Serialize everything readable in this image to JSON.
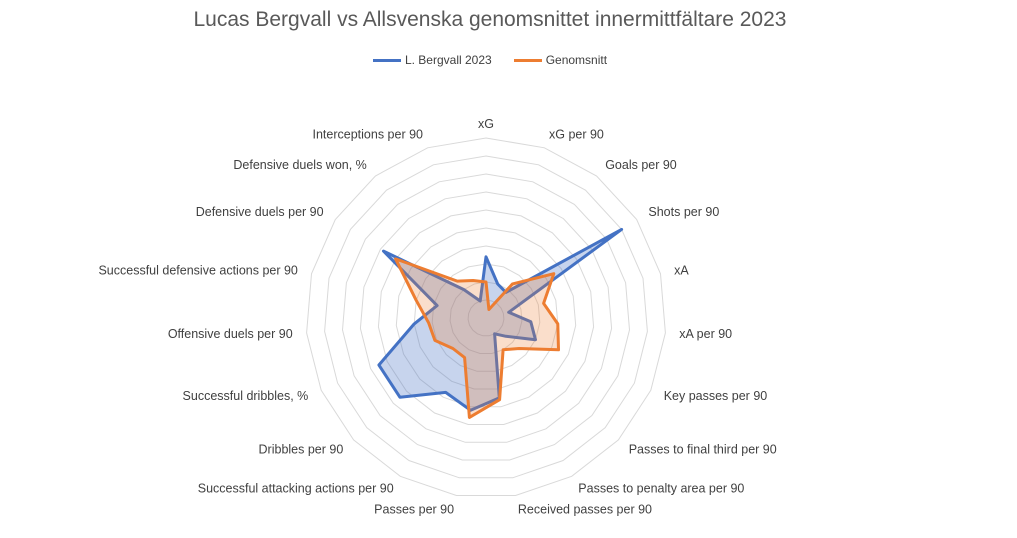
{
  "chart_data": {
    "type": "radar",
    "title": "Lucas Bergvall vs Allsvenska genomsnittet innermittfältare 2023",
    "categories": [
      "xG",
      "xG per 90",
      "Goals per 90",
      "Shots per 90",
      "xA",
      "xA per 90",
      "Key passes per 90",
      "Passes to final third per 90",
      "Passes to penalty area per 90",
      "Received passes per 90",
      "Passes per 90",
      "Successful attacking actions per 90",
      "Dribbles per 90",
      "Successful dribbles, %",
      "Offensive duels per 90",
      "Successful defensive actions per 90",
      "Defensive duels per 90",
      "Defensive duels won, %",
      "Interceptions per 90"
    ],
    "rmax": 10,
    "rings": 10,
    "legend_position": "top",
    "series": [
      {
        "name": "L. Bergvall 2023",
        "color": "#4472C4",
        "fill": "rgba(68,114,196,0.30)",
        "values": [
          3.4,
          2.0,
          1.8,
          9.0,
          1.3,
          2.5,
          3.0,
          1.5,
          1.0,
          4.5,
          5.2,
          4.7,
          6.5,
          6.5,
          4.0,
          2.8,
          6.8,
          2.0,
          1.0
        ]
      },
      {
        "name": "Genomsnitt",
        "color": "#ED7D31",
        "fill": "rgba(237,125,49,0.25)",
        "values": [
          2.0,
          0.5,
          2.4,
          4.5,
          3.3,
          4.0,
          4.4,
          2.5,
          2.0,
          4.6,
          5.6,
          2.5,
          2.5,
          3.1,
          3.2,
          4.0,
          6.0,
          2.6,
          2.2
        ]
      }
    ]
  }
}
